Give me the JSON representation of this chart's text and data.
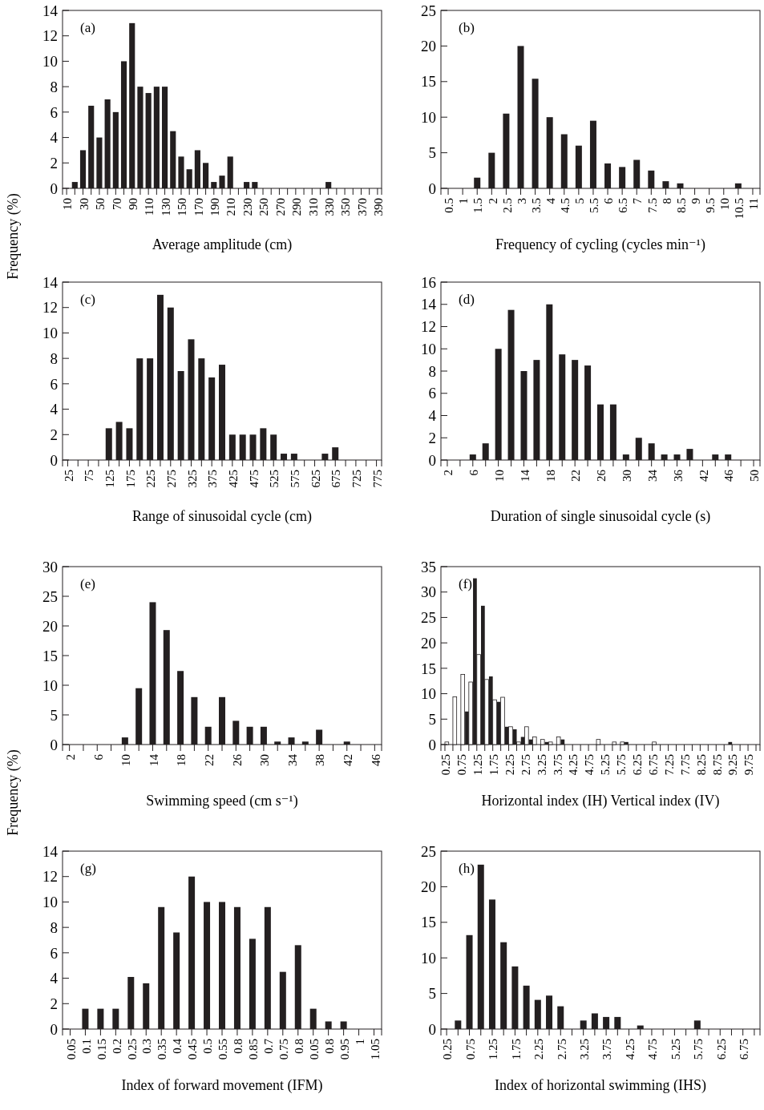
{
  "chart_data": [
    {
      "type": "bar",
      "title": "(a)",
      "xlabel": "Average amplitude (cm)",
      "ylabel": "Frequency (%)",
      "categories": [
        "10",
        null,
        "30",
        null,
        "50",
        null,
        "70",
        null,
        "90",
        null,
        "110",
        null,
        "130",
        null,
        "150",
        null,
        "170",
        null,
        "190",
        null,
        "210",
        null,
        "230",
        null,
        "250",
        null,
        "270",
        null,
        "290",
        null,
        "310",
        null,
        "330",
        null,
        "350",
        null,
        "370",
        null,
        "390"
      ],
      "values": [
        0,
        0.5,
        3,
        6.5,
        4,
        7,
        6,
        10,
        13,
        8,
        7.5,
        8,
        8,
        4.5,
        2.5,
        1.5,
        3,
        2,
        0.5,
        1,
        2.5,
        0,
        0.5,
        0.5,
        0,
        0,
        0,
        0,
        0,
        0,
        0,
        0,
        0.5,
        0,
        0,
        0,
        0,
        0,
        0
      ],
      "color": "#231f20",
      "ylim": [
        0,
        14
      ],
      "yticks": [
        0,
        2,
        4,
        6,
        8,
        10,
        12,
        14
      ]
    },
    {
      "type": "bar",
      "title": "(b)",
      "xlabel": "Frequency of cycling (cycles min⁻¹)",
      "categories": [
        "0.5",
        "1",
        "1.5",
        "2",
        "2.5",
        "3",
        "3.5",
        "4",
        "4.5",
        "5",
        "5.5",
        "6",
        "6.5",
        "7",
        "7.5",
        "8",
        "8.5",
        "9",
        "9.5",
        "10",
        "10.5",
        "11"
      ],
      "values": [
        0,
        0,
        1.5,
        5,
        10.5,
        20,
        15.4,
        10,
        7.6,
        6,
        9.5,
        3.5,
        3,
        4,
        2.5,
        1,
        0.7,
        0,
        0,
        0,
        0.7,
        0
      ],
      "color": "#231f20",
      "ylim": [
        0,
        25
      ],
      "yticks": [
        0,
        5,
        10,
        15,
        20,
        25
      ]
    },
    {
      "type": "bar",
      "title": "(c)",
      "xlabel": "Range of sinusoidal cycle (cm)",
      "categories": [
        "25",
        null,
        "75",
        null,
        "125",
        null,
        "175",
        null,
        "225",
        null,
        "275",
        null,
        "325",
        null,
        "375",
        null,
        "425",
        null,
        "475",
        null,
        "525",
        null,
        "575",
        null,
        "625",
        null,
        "675",
        null,
        "725",
        null,
        "775"
      ],
      "values": [
        0,
        0,
        0,
        0,
        2.5,
        3,
        2.5,
        8,
        8,
        13,
        12,
        7,
        9.5,
        8,
        6.5,
        7.5,
        2,
        2,
        2,
        2.5,
        2,
        0.5,
        0.5,
        0,
        0,
        0.5,
        1,
        0,
        0,
        0,
        0
      ],
      "color": "#231f20",
      "ylim": [
        0,
        14
      ],
      "yticks": [
        0,
        2,
        4,
        6,
        8,
        10,
        12,
        14
      ]
    },
    {
      "type": "bar",
      "title": "(d)",
      "xlabel": "Duration of single sinusoidal cycle (s)",
      "categories": [
        "2",
        null,
        "6",
        null,
        "10",
        null,
        "14",
        null,
        "18",
        null,
        "22",
        null,
        "26",
        null,
        "30",
        null,
        "34",
        null,
        "36",
        null,
        "42",
        null,
        "46",
        null,
        "50"
      ],
      "values": [
        0,
        0,
        0.5,
        1.5,
        10,
        13.5,
        8,
        9,
        14,
        9.5,
        9,
        8.5,
        5,
        5,
        0.5,
        2,
        1.5,
        0.5,
        0.5,
        1,
        0,
        0.5,
        0.5,
        0,
        0
      ],
      "color": "#231f20",
      "ylim": [
        0,
        16
      ],
      "yticks": [
        0,
        2,
        4,
        6,
        8,
        10,
        12,
        14,
        16
      ]
    },
    {
      "type": "bar",
      "title": "(e)",
      "xlabel": "Swimming speed (cm s⁻¹)",
      "ylabel": "Frequency (%)",
      "categories": [
        "2",
        null,
        "6",
        null,
        "10",
        null,
        "14",
        null,
        "18",
        null,
        "22",
        null,
        "26",
        null,
        "30",
        null,
        "34",
        null,
        "38",
        null,
        "42",
        null,
        "46"
      ],
      "values": [
        0,
        0,
        0,
        0,
        1.2,
        9.5,
        24,
        19.3,
        12.4,
        8,
        3,
        8,
        4,
        3,
        3,
        0.5,
        1.2,
        0.5,
        2.5,
        0,
        0.5,
        0,
        0
      ],
      "color": "#231f20",
      "ylim": [
        0,
        30
      ],
      "yticks": [
        0,
        5,
        10,
        15,
        20,
        25,
        30
      ]
    },
    {
      "type": "bar",
      "title": "(f)",
      "xlabel": "Horizontal index (IH)   Vertical index (IV)",
      "categories": [
        "0.25",
        null,
        "0.75",
        null,
        "1.25",
        null,
        "1.75",
        null,
        "2.25",
        null,
        "2.75",
        null,
        "3.25",
        null,
        "3.75",
        null,
        "4.25",
        null,
        "4.75",
        null,
        "5.25",
        null,
        "5.75",
        null,
        "6.25",
        null,
        "6.75",
        null,
        "7.25",
        null,
        "7.75",
        null,
        "8.25",
        null,
        "8.75",
        null,
        "9.25",
        null,
        "9.75",
        null
      ],
      "series": [
        {
          "color": "#231f20",
          "values": [
            0,
            0,
            0,
            6.5,
            32.7,
            27.3,
            13.4,
            8.4,
            3.5,
            3,
            1.5,
            1,
            0,
            0.5,
            0,
            1,
            0,
            0,
            0,
            0,
            0,
            0,
            0,
            0.5,
            0,
            0,
            0,
            0,
            0,
            0,
            0,
            0,
            0,
            0,
            0,
            0,
            0.5,
            0,
            0,
            0
          ]
        },
        {
          "color": "#ffffff",
          "values": [
            0.5,
            9.4,
            13.8,
            12.3,
            17.7,
            12.8,
            8.8,
            9.3,
            3.5,
            0.5,
            3.5,
            1.5,
            1,
            0.5,
            1.5,
            0,
            0,
            0,
            0,
            1,
            0,
            0.5,
            0.5,
            0,
            0,
            0,
            0.5,
            0,
            0,
            0,
            0,
            0,
            0,
            0,
            0,
            0,
            0,
            0,
            0,
            0
          ]
        }
      ],
      "ylim": [
        0,
        35
      ],
      "yticks": [
        0,
        5,
        10,
        15,
        20,
        25,
        30,
        35
      ]
    },
    {
      "type": "bar",
      "title": "(g)",
      "xlabel": "Index of forward movement (IFM)",
      "categories": [
        "0.05",
        "0.1",
        "0.15",
        "0.2",
        "0.25",
        "0.3",
        "0.35",
        "0.4",
        "0.45",
        "0.5",
        "0.55",
        "0.8",
        "0.85",
        "0.7",
        "0.75",
        "0.8",
        "0.05",
        "0.8",
        "0.95",
        "1",
        "1.05"
      ],
      "values": [
        0,
        1.6,
        1.6,
        1.6,
        4.1,
        3.6,
        9.6,
        7.6,
        12,
        10,
        10,
        9.6,
        7.1,
        9.6,
        4.5,
        6.6,
        1.6,
        0.6,
        0.6,
        0,
        0
      ],
      "color": "#231f20",
      "ylim": [
        0,
        14
      ],
      "yticks": [
        0,
        2,
        4,
        6,
        8,
        10,
        12,
        14
      ]
    },
    {
      "type": "bar",
      "title": "(h)",
      "xlabel": "Index of horizontal swimming (IHS)",
      "categories": [
        "0.25",
        null,
        "0.75",
        null,
        "1.25",
        null,
        "1.75",
        null,
        "2.25",
        null,
        "2.75",
        null,
        "3.25",
        null,
        "3.75",
        null,
        "4.25",
        null,
        "4.75",
        null,
        "5.25",
        null,
        "5.75",
        null,
        "6.25",
        null,
        "6.75",
        null
      ],
      "values": [
        0,
        1.2,
        13.2,
        23.1,
        18.2,
        12.2,
        8.8,
        6.1,
        4.1,
        4.7,
        3.2,
        0,
        1.2,
        2.2,
        1.7,
        1.7,
        0,
        0.5,
        0,
        0,
        0,
        0,
        1.2,
        0,
        0,
        0,
        0,
        0
      ],
      "color": "#231f20",
      "ylim": [
        0,
        25
      ],
      "yticks": [
        0,
        5,
        10,
        15,
        20,
        25
      ]
    }
  ]
}
